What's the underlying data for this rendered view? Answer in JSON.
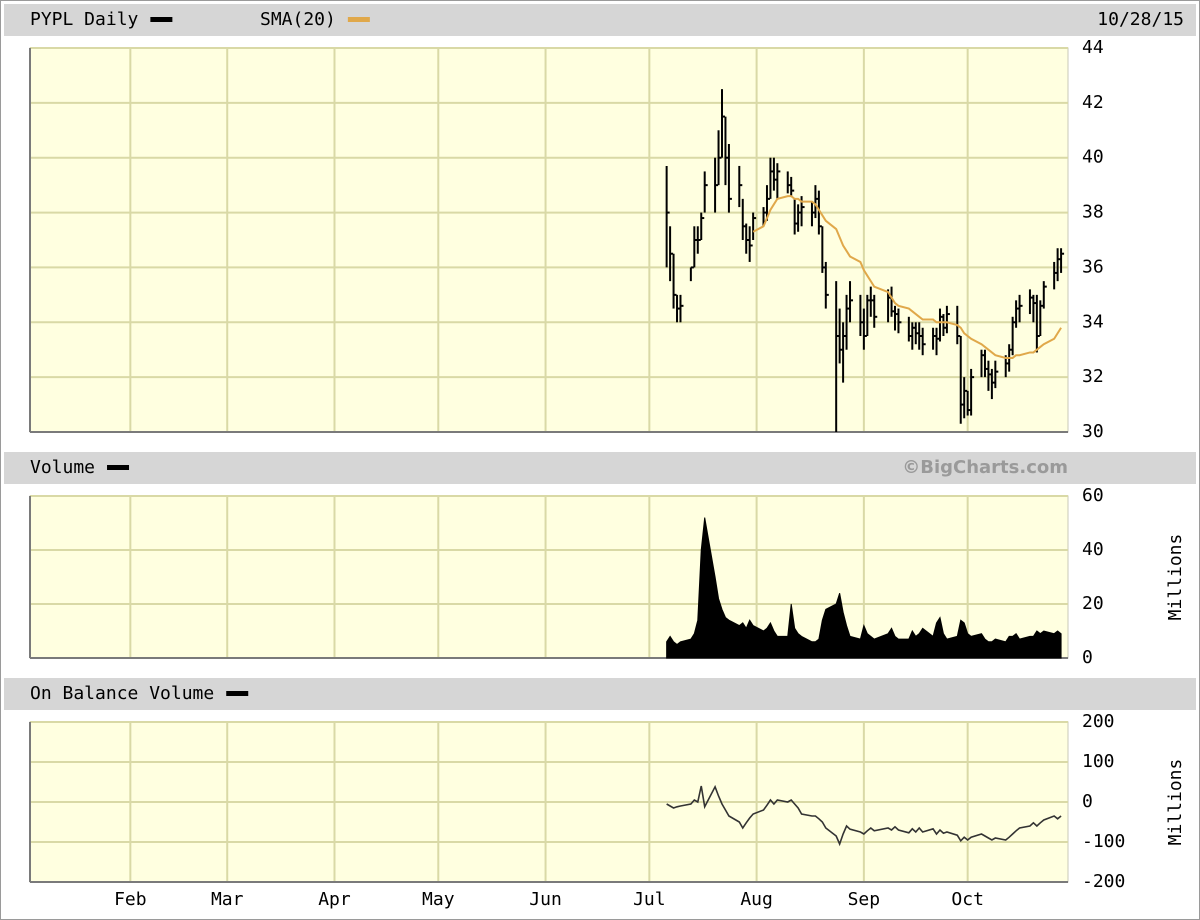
{
  "chart_data": [
    {
      "type": "ohlc",
      "date": "10/28/15",
      "x": [
        187,
        188,
        189,
        190,
        191,
        194,
        195,
        196,
        197,
        198,
        201,
        202,
        203,
        204,
        205,
        208,
        209,
        210,
        211,
        212,
        215,
        216,
        217,
        218,
        219,
        222,
        223,
        224,
        225,
        226,
        229,
        230,
        231,
        232,
        233,
        236,
        237,
        238,
        239,
        240,
        243,
        244,
        245,
        246,
        247,
        251,
        252,
        253,
        254,
        257,
        258,
        259,
        260,
        261,
        264,
        265,
        266,
        267,
        268,
        271,
        272,
        273,
        274,
        275,
        278,
        279,
        280,
        281,
        282,
        285,
        286,
        287,
        288,
        289,
        292,
        293,
        294,
        295,
        296,
        299,
        300,
        301
      ],
      "xlim": [
        3,
        303
      ],
      "ylim": [
        30,
        44
      ],
      "yticks": [
        30,
        32,
        34,
        36,
        38,
        40,
        42,
        44
      ],
      "grid": true,
      "series": [
        {
          "name": "PYPL Daily",
          "color": "#000000",
          "high": [
            39.7,
            37.5,
            36.5,
            35,
            35,
            36,
            37.5,
            37.5,
            38,
            39.5,
            40,
            41,
            42.5,
            41.5,
            40.5,
            39.7,
            38.5,
            37.6,
            37.5,
            38,
            38.2,
            39,
            40,
            40,
            39.8,
            39.5,
            39.3,
            38.5,
            38.3,
            38.6,
            38.4,
            39,
            38.8,
            37.5,
            36.2,
            35.5,
            34.5,
            34,
            35,
            35.5,
            35,
            34.5,
            35,
            35.3,
            35,
            35.2,
            35.3,
            34.6,
            34.5,
            34.2,
            34,
            34,
            34,
            33.8,
            33.8,
            33.8,
            34.5,
            34.3,
            34.6,
            34.6,
            33.5,
            32,
            31.5,
            32.3,
            33,
            33,
            32.6,
            32.3,
            32.6,
            32.8,
            33.2,
            34.2,
            34.8,
            35,
            35.2,
            35,
            35,
            34.8,
            35.5,
            36.2,
            36.7,
            36.7
          ],
          "low": [
            36,
            35.5,
            34.5,
            34,
            34,
            35.5,
            36,
            36.5,
            37,
            38,
            38,
            39,
            40,
            39,
            38,
            38.2,
            37,
            36.5,
            36.2,
            37,
            37.5,
            37.7,
            38.5,
            38.8,
            38.5,
            38.7,
            38.6,
            37.2,
            37.3,
            37.5,
            37.5,
            37.8,
            37.2,
            35.8,
            34.5,
            30,
            32.5,
            31.8,
            33,
            34,
            33.5,
            33,
            33.5,
            34.2,
            33.8,
            34,
            34.2,
            33.7,
            33.6,
            33.3,
            33,
            33.2,
            33,
            32.8,
            33,
            32.8,
            33.3,
            33.5,
            33.6,
            33.2,
            30.3,
            30.5,
            30.6,
            30.6,
            32,
            32,
            31.5,
            31.2,
            31.6,
            32,
            32.2,
            32.8,
            33.8,
            34,
            34.3,
            34,
            32.9,
            33.5,
            34.5,
            35.2,
            35.5,
            35.8
          ],
          "close": [
            38,
            36.5,
            35,
            34.5,
            34.6,
            36,
            37,
            37,
            37.8,
            39,
            39,
            40,
            41.5,
            40,
            38.5,
            39,
            37.5,
            37,
            36.8,
            37.8,
            38,
            38.5,
            39.5,
            39.2,
            39.5,
            39,
            38.8,
            37.6,
            38,
            38.2,
            38,
            38.5,
            37.5,
            36,
            35,
            33.5,
            33,
            33.5,
            34.5,
            34.8,
            34,
            33.5,
            34.8,
            34.8,
            34.2,
            34.9,
            34.4,
            34.3,
            34,
            33.5,
            33.8,
            33.6,
            33.5,
            33.2,
            33.5,
            33.4,
            34.2,
            33.8,
            34.3,
            33.5,
            31,
            31.5,
            30.8,
            32,
            32.8,
            32.3,
            32.1,
            31.8,
            32.2,
            32.5,
            33,
            34,
            34.5,
            34.6,
            34.9,
            34.7,
            33.5,
            34.6,
            35.3,
            35.8,
            36.3,
            36.5
          ]
        },
        {
          "name": "SMA(20)",
          "color": "#e0a84a",
          "values": [
            null,
            null,
            null,
            null,
            null,
            null,
            null,
            null,
            null,
            null,
            null,
            null,
            null,
            null,
            null,
            null,
            null,
            null,
            null,
            37.3,
            37.5,
            37.8,
            38.1,
            38.3,
            38.5,
            38.6,
            38.6,
            38.5,
            38.5,
            38.4,
            38.4,
            38.3,
            38.1,
            37.9,
            37.7,
            37.4,
            37.1,
            36.8,
            36.6,
            36.4,
            36.2,
            35.9,
            35.7,
            35.5,
            35.3,
            35.1,
            34.9,
            34.7,
            34.6,
            34.5,
            34.4,
            34.3,
            34.2,
            34.1,
            34.1,
            34.0,
            34.0,
            34.0,
            34.0,
            33.9,
            33.8,
            33.6,
            33.5,
            33.4,
            33.2,
            33.1,
            33.0,
            32.9,
            32.8,
            32.7,
            32.7,
            32.7,
            32.8,
            32.8,
            32.9,
            32.9,
            33.0,
            33.1,
            33.2,
            33.4,
            33.6,
            33.8
          ]
        }
      ]
    },
    {
      "type": "area",
      "source": "©BigCharts.com",
      "ylabel": "Millions",
      "x": [
        187,
        188,
        189,
        190,
        191,
        194,
        195,
        196,
        197,
        198,
        201,
        202,
        203,
        204,
        205,
        208,
        209,
        210,
        211,
        212,
        215,
        216,
        217,
        218,
        219,
        222,
        223,
        224,
        225,
        226,
        229,
        230,
        231,
        232,
        233,
        236,
        237,
        238,
        239,
        240,
        243,
        244,
        245,
        246,
        247,
        251,
        252,
        253,
        254,
        257,
        258,
        259,
        260,
        261,
        264,
        265,
        266,
        267,
        268,
        271,
        272,
        273,
        274,
        275,
        278,
        279,
        280,
        281,
        282,
        285,
        286,
        287,
        288,
        289,
        292,
        293,
        294,
        295,
        296,
        299,
        300,
        301
      ],
      "xlim": [
        3,
        303
      ],
      "ylim": [
        0,
        60
      ],
      "yticks": [
        0,
        20,
        40,
        60
      ],
      "grid": true,
      "series": [
        {
          "name": "Volume",
          "color": "#000000",
          "values": [
            6,
            8,
            6,
            5,
            6,
            7,
            9,
            14,
            40,
            52,
            30,
            22,
            18,
            15,
            14,
            12,
            13,
            11,
            14,
            12,
            10,
            11,
            13,
            10,
            8,
            8,
            20,
            11,
            9,
            8,
            6,
            6,
            7,
            14,
            18,
            20,
            24,
            17,
            12,
            8,
            7,
            12,
            9,
            8,
            7,
            9,
            11,
            8,
            7,
            7,
            10,
            8,
            9,
            11,
            8,
            13,
            15,
            9,
            7,
            8,
            14,
            13,
            9,
            8,
            9,
            7,
            6,
            6,
            7,
            6,
            8,
            8,
            9,
            7,
            8,
            8,
            10,
            9,
            10,
            9,
            10,
            9
          ]
        }
      ]
    },
    {
      "type": "line",
      "ylabel": "Millions",
      "x": [
        187,
        188,
        189,
        190,
        191,
        194,
        195,
        196,
        197,
        198,
        201,
        202,
        203,
        204,
        205,
        208,
        209,
        210,
        211,
        212,
        215,
        216,
        217,
        218,
        219,
        222,
        223,
        224,
        225,
        226,
        229,
        230,
        231,
        232,
        233,
        236,
        237,
        238,
        239,
        240,
        243,
        244,
        245,
        246,
        247,
        251,
        252,
        253,
        254,
        257,
        258,
        259,
        260,
        261,
        264,
        265,
        266,
        267,
        268,
        271,
        272,
        273,
        274,
        275,
        278,
        279,
        280,
        281,
        282,
        285,
        286,
        287,
        288,
        289,
        292,
        293,
        294,
        295,
        296,
        299,
        300,
        301
      ],
      "xlim": [
        3,
        303
      ],
      "ylim": [
        -200,
        200
      ],
      "yticks": [
        -200,
        -100,
        0,
        100,
        200
      ],
      "grid": true,
      "xticks": [
        {
          "value": 32,
          "label": "Feb"
        },
        {
          "value": 60,
          "label": "Mar"
        },
        {
          "value": 91,
          "label": "Apr"
        },
        {
          "value": 121,
          "label": "May"
        },
        {
          "value": 152,
          "label": "Jun"
        },
        {
          "value": 182,
          "label": "Jul"
        },
        {
          "value": 213,
          "label": "Aug"
        },
        {
          "value": 244,
          "label": "Sep"
        },
        {
          "value": 274,
          "label": "Oct"
        }
      ],
      "series": [
        {
          "name": "On Balance Volume",
          "color": "#000000",
          "values": [
            -5,
            -10,
            -15,
            -12,
            -10,
            -5,
            5,
            0,
            40,
            -12,
            38,
            15,
            -5,
            -20,
            -35,
            -50,
            -65,
            -52,
            -40,
            -30,
            -20,
            -8,
            5,
            -5,
            5,
            0,
            5,
            -5,
            -15,
            -30,
            -35,
            -35,
            -42,
            -50,
            -65,
            -85,
            -105,
            -80,
            -60,
            -68,
            -75,
            -80,
            -72,
            -65,
            -72,
            -65,
            -70,
            -62,
            -70,
            -77,
            -67,
            -75,
            -65,
            -75,
            -67,
            -80,
            -70,
            -78,
            -75,
            -83,
            -97,
            -88,
            -95,
            -88,
            -80,
            -85,
            -90,
            -95,
            -90,
            -95,
            -88,
            -80,
            -72,
            -65,
            -60,
            -52,
            -60,
            -52,
            -45,
            -35,
            -42,
            -35
          ]
        }
      ]
    }
  ]
}
